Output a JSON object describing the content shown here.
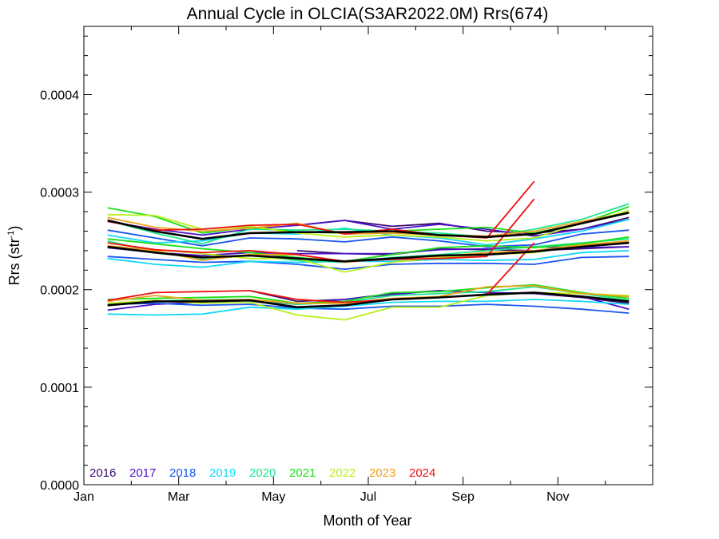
{
  "chart_data": {
    "type": "line",
    "title": "Annual Cycle in OLCIA(S3AR2022.0M) Rrs(674)",
    "xlabel": "Month of Year",
    "ylabel_main": "Rrs (str",
    "ylabel_sup": "-1",
    "ylabel_close": ")",
    "xlim": [
      0,
      12
    ],
    "ylim": [
      0,
      0.00047
    ],
    "x_ticks": [
      {
        "value": 0,
        "label": "Jan"
      },
      {
        "value": 2,
        "label": "Mar"
      },
      {
        "value": 4,
        "label": "May"
      },
      {
        "value": 6,
        "label": "Jul"
      },
      {
        "value": 8,
        "label": "Sep"
      },
      {
        "value": 10,
        "label": "Nov"
      }
    ],
    "y_ticks": [
      {
        "value": 0,
        "label": "0.0000"
      },
      {
        "value": 0.0001,
        "label": "0.0001"
      },
      {
        "value": 0.0002,
        "label": "0.0002"
      },
      {
        "value": 0.0003,
        "label": "0.0003"
      },
      {
        "value": 0.0004,
        "label": "0.0004"
      }
    ],
    "legend_placement": "bottom-left",
    "x": [
      0.5,
      1.5,
      2.5,
      3.5,
      4.5,
      5.5,
      6.5,
      7.5,
      8.5,
      9.5,
      10.5,
      11.5
    ],
    "series": [
      {
        "name": "2016",
        "color": "#3a0a6e",
        "upper": [
          null,
          null,
          null,
          null,
          0.000266,
          0.000271,
          0.000265,
          0.000268,
          0.00026,
          0.000258,
          0.000262,
          0.000274
        ],
        "middle": [
          null,
          null,
          null,
          null,
          0.00024,
          0.000237,
          0.000236,
          0.000242,
          0.000241,
          0.00024,
          0.000242,
          0.000244
        ],
        "lower": [
          null,
          null,
          null,
          0.000199,
          0.000188,
          0.00019,
          0.000196,
          0.000199,
          0.000197,
          0.000196,
          0.000192,
          0.000186
        ]
      },
      {
        "name": "2017",
        "color": "#4a12c8",
        "upper": [
          0.00027,
          0.000262,
          0.000256,
          0.000262,
          0.000266,
          0.000271,
          0.000262,
          0.000267,
          0.000262,
          0.000255,
          0.000262,
          0.000272
        ],
        "middle": [
          0.000243,
          0.000238,
          0.000235,
          0.000238,
          0.000237,
          0.000237,
          0.000237,
          0.000241,
          0.000242,
          0.000244,
          0.000243,
          0.000244
        ],
        "lower": [
          0.000179,
          0.000185,
          0.000187,
          0.000189,
          0.000185,
          0.00019,
          0.000195,
          0.000199,
          0.000197,
          0.000196,
          0.000193,
          0.00018
        ]
      },
      {
        "name": "2018",
        "color": "#1a55ee",
        "upper": [
          0.000261,
          0.000253,
          0.000245,
          0.000253,
          0.000252,
          0.000249,
          0.000254,
          0.00025,
          0.000244,
          0.000246,
          0.000257,
          0.000261
        ],
        "middle": [
          0.000234,
          0.000231,
          0.000228,
          0.000229,
          0.000226,
          0.000221,
          0.000226,
          0.000227,
          0.000227,
          0.000226,
          0.000233,
          0.000234
        ],
        "lower": [
          0.000185,
          0.000186,
          0.000184,
          0.000185,
          0.000181,
          0.00018,
          0.000183,
          0.000183,
          0.000185,
          0.000183,
          0.00018,
          0.000176
        ]
      },
      {
        "name": "2019",
        "color": "#12d8f8",
        "upper": [
          0.000256,
          0.000248,
          0.00025,
          0.000258,
          0.000257,
          0.000263,
          0.000256,
          0.000253,
          0.000246,
          0.000252,
          0.00026,
          0.000272
        ],
        "middle": [
          0.000232,
          0.000226,
          0.000223,
          0.000229,
          0.000228,
          0.000229,
          0.000229,
          0.000231,
          0.00023,
          0.000231,
          0.000238,
          0.00024
        ],
        "lower": [
          0.000175,
          0.000174,
          0.000175,
          0.000182,
          0.00018,
          0.000183,
          0.000187,
          0.000188,
          0.000188,
          0.00019,
          0.000188,
          0.000185
        ]
      },
      {
        "name": "2020",
        "color": "#1ae890",
        "upper": [
          0.000271,
          0.000258,
          0.000247,
          0.000262,
          0.000261,
          0.000262,
          0.00026,
          0.000258,
          0.000254,
          0.000262,
          0.000272,
          0.000288
        ],
        "middle": [
          0.00025,
          0.000239,
          0.000231,
          0.000235,
          0.00023,
          0.000228,
          0.000233,
          0.000236,
          0.00024,
          0.000244,
          0.000248,
          0.000252
        ],
        "lower": [
          0.000184,
          0.000188,
          0.00019,
          0.00019,
          0.000185,
          0.000187,
          0.000194,
          0.000196,
          0.000198,
          0.000203,
          0.000196,
          0.000189
        ]
      },
      {
        "name": "2021",
        "color": "#18e018",
        "upper": [
          0.000284,
          0.000275,
          0.000258,
          0.000264,
          0.000259,
          0.000258,
          0.00026,
          0.000262,
          0.000264,
          0.000258,
          0.000268,
          0.000285
        ],
        "middle": [
          0.000252,
          0.000247,
          0.000242,
          0.000238,
          0.000233,
          0.000229,
          0.000236,
          0.000243,
          0.000245,
          0.000243,
          0.000247,
          0.000254
        ],
        "lower": [
          0.00019,
          0.000191,
          0.000192,
          0.000193,
          0.000186,
          0.000188,
          0.000197,
          0.000198,
          0.000202,
          0.000205,
          0.000197,
          0.000191
        ]
      },
      {
        "name": "2022",
        "color": "#b8f01a",
        "upper": [
          0.000277,
          0.000276,
          0.000262,
          0.000265,
          0.000258,
          0.000254,
          0.000256,
          0.000254,
          0.00025,
          0.000253,
          0.000268,
          0.000281
        ],
        "middle": [
          0.000248,
          0.000241,
          0.000237,
          0.000232,
          0.000232,
          0.000218,
          0.000228,
          0.000233,
          0.000236,
          0.000238,
          0.000245,
          0.00025
        ],
        "lower": [
          0.000186,
          0.000189,
          0.000186,
          0.000187,
          0.000174,
          0.000169,
          0.000182,
          0.000182,
          0.000194,
          0.000197,
          0.000196,
          0.000194
        ]
      },
      {
        "name": "2023",
        "color": "#f0a01a",
        "upper": [
          0.000274,
          0.000264,
          0.00026,
          0.000263,
          0.000268,
          0.000257,
          0.000258,
          0.000256,
          0.000255,
          0.00026,
          0.00027,
          0.000279
        ],
        "middle": [
          0.000245,
          0.00024,
          0.00023,
          0.000236,
          0.000236,
          0.000228,
          0.000232,
          0.000234,
          0.000238,
          0.00024,
          0.000246,
          0.00025
        ],
        "lower": [
          0.000188,
          0.000194,
          0.000189,
          0.00019,
          0.000186,
          0.000186,
          0.000191,
          0.000193,
          0.000203,
          0.000204,
          0.000196,
          0.000193
        ]
      },
      {
        "name": "2024",
        "color": "#ee1010",
        "upper": [
          0.00027,
          0.000261,
          0.000262,
          0.000266,
          0.000267,
          0.000257,
          0.000262,
          0.000256,
          0.000253,
          0.000311,
          null,
          null
        ],
        "middle": [
          0.000248,
          0.000241,
          0.000238,
          0.00024,
          0.000236,
          0.000229,
          0.000231,
          0.000232,
          0.000234,
          0.000293,
          null,
          null
        ],
        "lower": [
          0.000189,
          0.000197,
          0.000198,
          0.000199,
          0.00019,
          0.000187,
          0.00019,
          0.000192,
          0.000195,
          0.000248,
          null,
          null
        ]
      },
      {
        "name": "",
        "color": "#000000",
        "upper": [
          0.000271,
          0.00026,
          0.000252,
          0.000258,
          0.000259,
          0.000259,
          0.00026,
          0.000256,
          0.000254,
          0.000257,
          0.000268,
          0.000279
        ],
        "middle": [
          0.000244,
          0.000238,
          0.000233,
          0.000235,
          0.000232,
          0.000229,
          0.000232,
          0.000235,
          0.000236,
          0.000239,
          0.000244,
          0.000248
        ],
        "lower": [
          0.000184,
          0.000188,
          0.000188,
          0.000189,
          0.000182,
          0.000184,
          0.00019,
          0.000192,
          0.000195,
          0.000197,
          0.000193,
          0.000188
        ]
      }
    ]
  }
}
